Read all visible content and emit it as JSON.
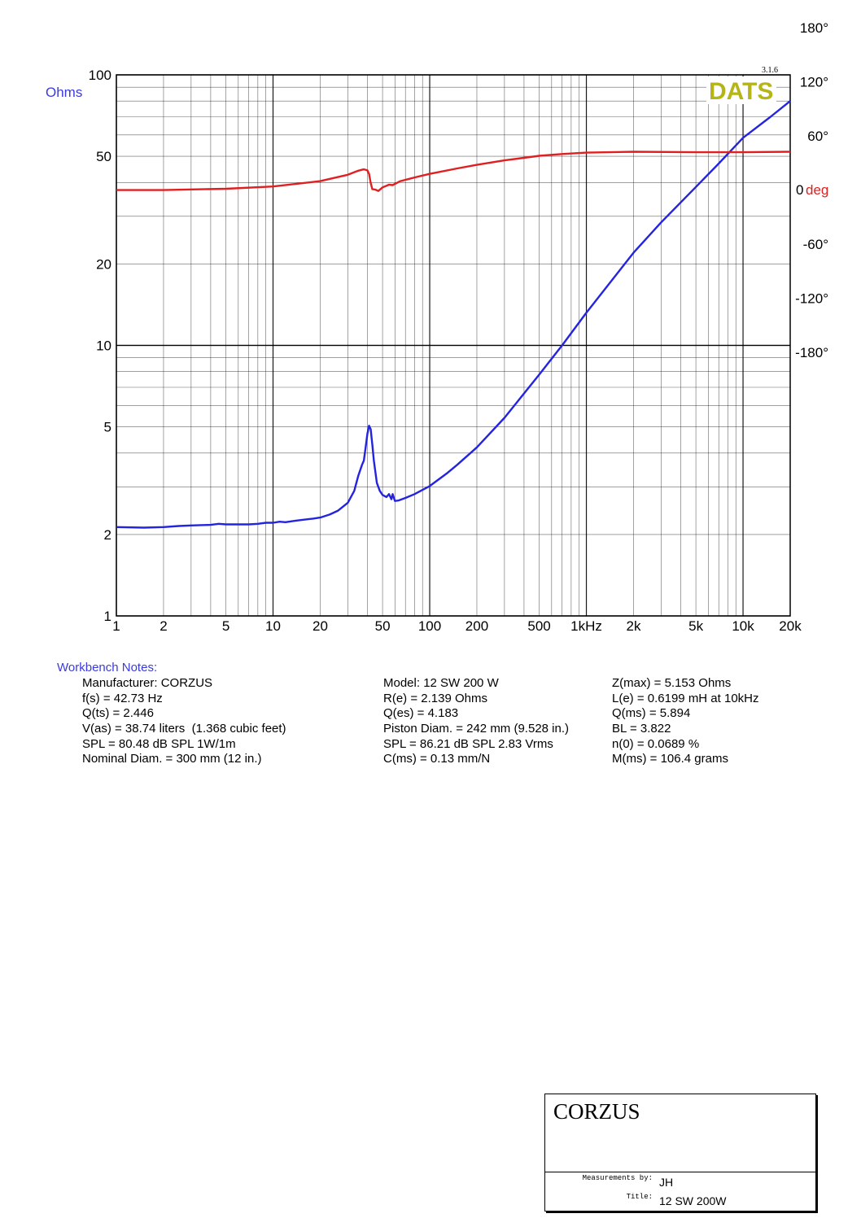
{
  "chart_data": {
    "type": "line",
    "version": "3.1.6",
    "logo": "DATS",
    "x_scale": "log",
    "x_range": [
      1,
      20000
    ],
    "x_ticks": [
      {
        "v": 1,
        "label": "1"
      },
      {
        "v": 2,
        "label": "2"
      },
      {
        "v": 5,
        "label": "5"
      },
      {
        "v": 10,
        "label": "10"
      },
      {
        "v": 20,
        "label": "20"
      },
      {
        "v": 50,
        "label": "50"
      },
      {
        "v": 100,
        "label": "100"
      },
      {
        "v": 200,
        "label": "200"
      },
      {
        "v": 500,
        "label": "500"
      },
      {
        "v": 1000,
        "label": "1kHz"
      },
      {
        "v": 2000,
        "label": "2k"
      },
      {
        "v": 5000,
        "label": "5k"
      },
      {
        "v": 10000,
        "label": "10k"
      },
      {
        "v": 20000,
        "label": "20k"
      }
    ],
    "y_left": {
      "label": "Ohms",
      "scale": "log",
      "range": [
        1,
        100
      ],
      "ticks": [
        {
          "v": 1,
          "label": "1"
        },
        {
          "v": 2,
          "label": "2"
        },
        {
          "v": 5,
          "label": "5"
        },
        {
          "v": 10,
          "label": "10"
        },
        {
          "v": 20,
          "label": "20"
        },
        {
          "v": 50,
          "label": "50"
        },
        {
          "v": 100,
          "label": "100"
        }
      ]
    },
    "y_right": {
      "label": "deg",
      "zero_label": "0",
      "degrees_per_ohm_decade": 300,
      "ticks": [
        {
          "v": 180,
          "label": "180°"
        },
        {
          "v": 120,
          "label": "120°"
        },
        {
          "v": 60,
          "label": "60°"
        },
        {
          "v": -60,
          "label": "-60°"
        },
        {
          "v": -120,
          "label": "-120°"
        },
        {
          "v": -180,
          "label": "-180°"
        }
      ]
    },
    "grid": true,
    "series": [
      {
        "color": "#2424e0",
        "axis": "left",
        "points": [
          [
            1,
            2.13
          ],
          [
            1.5,
            2.12
          ],
          [
            2,
            2.13
          ],
          [
            2.5,
            2.15
          ],
          [
            3,
            2.16
          ],
          [
            4,
            2.17
          ],
          [
            4.5,
            2.19
          ],
          [
            5,
            2.18
          ],
          [
            6,
            2.18
          ],
          [
            7,
            2.18
          ],
          [
            8,
            2.19
          ],
          [
            9,
            2.21
          ],
          [
            10,
            2.21
          ],
          [
            11,
            2.23
          ],
          [
            12,
            2.22
          ],
          [
            14,
            2.25
          ],
          [
            16,
            2.27
          ],
          [
            18,
            2.29
          ],
          [
            20,
            2.31
          ],
          [
            23,
            2.37
          ],
          [
            26,
            2.45
          ],
          [
            30,
            2.62
          ],
          [
            33,
            2.9
          ],
          [
            35,
            3.3
          ],
          [
            37,
            3.62
          ],
          [
            38,
            3.75
          ],
          [
            39,
            4.2
          ],
          [
            40,
            4.7
          ],
          [
            41,
            5.05
          ],
          [
            42,
            4.9
          ],
          [
            43,
            4.3
          ],
          [
            44,
            3.75
          ],
          [
            46,
            3.1
          ],
          [
            48,
            2.9
          ],
          [
            50,
            2.8
          ],
          [
            53,
            2.75
          ],
          [
            55,
            2.82
          ],
          [
            57,
            2.7
          ],
          [
            58,
            2.82
          ],
          [
            60,
            2.66
          ],
          [
            63,
            2.67
          ],
          [
            70,
            2.73
          ],
          [
            80,
            2.82
          ],
          [
            100,
            3.02
          ],
          [
            130,
            3.38
          ],
          [
            150,
            3.62
          ],
          [
            200,
            4.2
          ],
          [
            300,
            5.4
          ],
          [
            500,
            7.8
          ],
          [
            700,
            10.0
          ],
          [
            1000,
            13.2
          ],
          [
            2000,
            22.0
          ],
          [
            3000,
            28.5
          ],
          [
            5000,
            38.5
          ],
          [
            7000,
            47.0
          ],
          [
            10000,
            58.5
          ],
          [
            15000,
            70.0
          ],
          [
            20000,
            80.0
          ]
        ]
      },
      {
        "color": "#e02020",
        "axis": "right",
        "points": [
          [
            1,
            0.0
          ],
          [
            2,
            0.0
          ],
          [
            5,
            1.5
          ],
          [
            10,
            4.0
          ],
          [
            20,
            10.0
          ],
          [
            30,
            17.0
          ],
          [
            35,
            21.5
          ],
          [
            38,
            23.0
          ],
          [
            40,
            22.0
          ],
          [
            41,
            18.0
          ],
          [
            42,
            8.0
          ],
          [
            43,
            1.0
          ],
          [
            45,
            0.5
          ],
          [
            47,
            -1.0
          ],
          [
            50,
            3.0
          ],
          [
            55,
            6.0
          ],
          [
            58,
            5.5
          ],
          [
            65,
            10.0
          ],
          [
            80,
            14.0
          ],
          [
            100,
            18.0
          ],
          [
            150,
            24.0
          ],
          [
            200,
            28.0
          ],
          [
            300,
            33.0
          ],
          [
            500,
            38.0
          ],
          [
            700,
            40.0
          ],
          [
            1000,
            41.5
          ],
          [
            2000,
            42.5
          ],
          [
            5000,
            42.0
          ],
          [
            10000,
            42.0
          ],
          [
            20000,
            42.5
          ]
        ]
      }
    ]
  },
  "notes": {
    "title": "Workbench Notes:",
    "col1": [
      "Manufacturer: CORZUS",
      "f(s) = 42.73 Hz",
      "Q(ts) = 2.446",
      "V(as) = 38.74 liters  (1.368 cubic feet)",
      "SPL = 80.48 dB SPL 1W/1m",
      "Nominal Diam. = 300 mm (12 in.)"
    ],
    "col2": [
      "Model: 12 SW 200 W",
      "R(e) = 2.139 Ohms",
      "Q(es) = 4.183",
      "Piston Diam. = 242 mm (9.528 in.)",
      "SPL = 86.21 dB SPL 2.83 Vrms",
      "C(ms) = 0.13 mm/N"
    ],
    "col3": [
      "Z(max) = 5.153 Ohms",
      "L(e) = 0.6199 mH at 10kHz",
      "Q(ms) = 5.894",
      "BL = 3.822",
      "n(0) = 0.0689 %",
      "M(ms) = 106.4 grams"
    ]
  },
  "title_block": {
    "company": "CORZUS",
    "measured_by_label": "Measurements by:",
    "measured_by": "JH",
    "title_label": "Title:",
    "title": "12 SW 200W"
  }
}
